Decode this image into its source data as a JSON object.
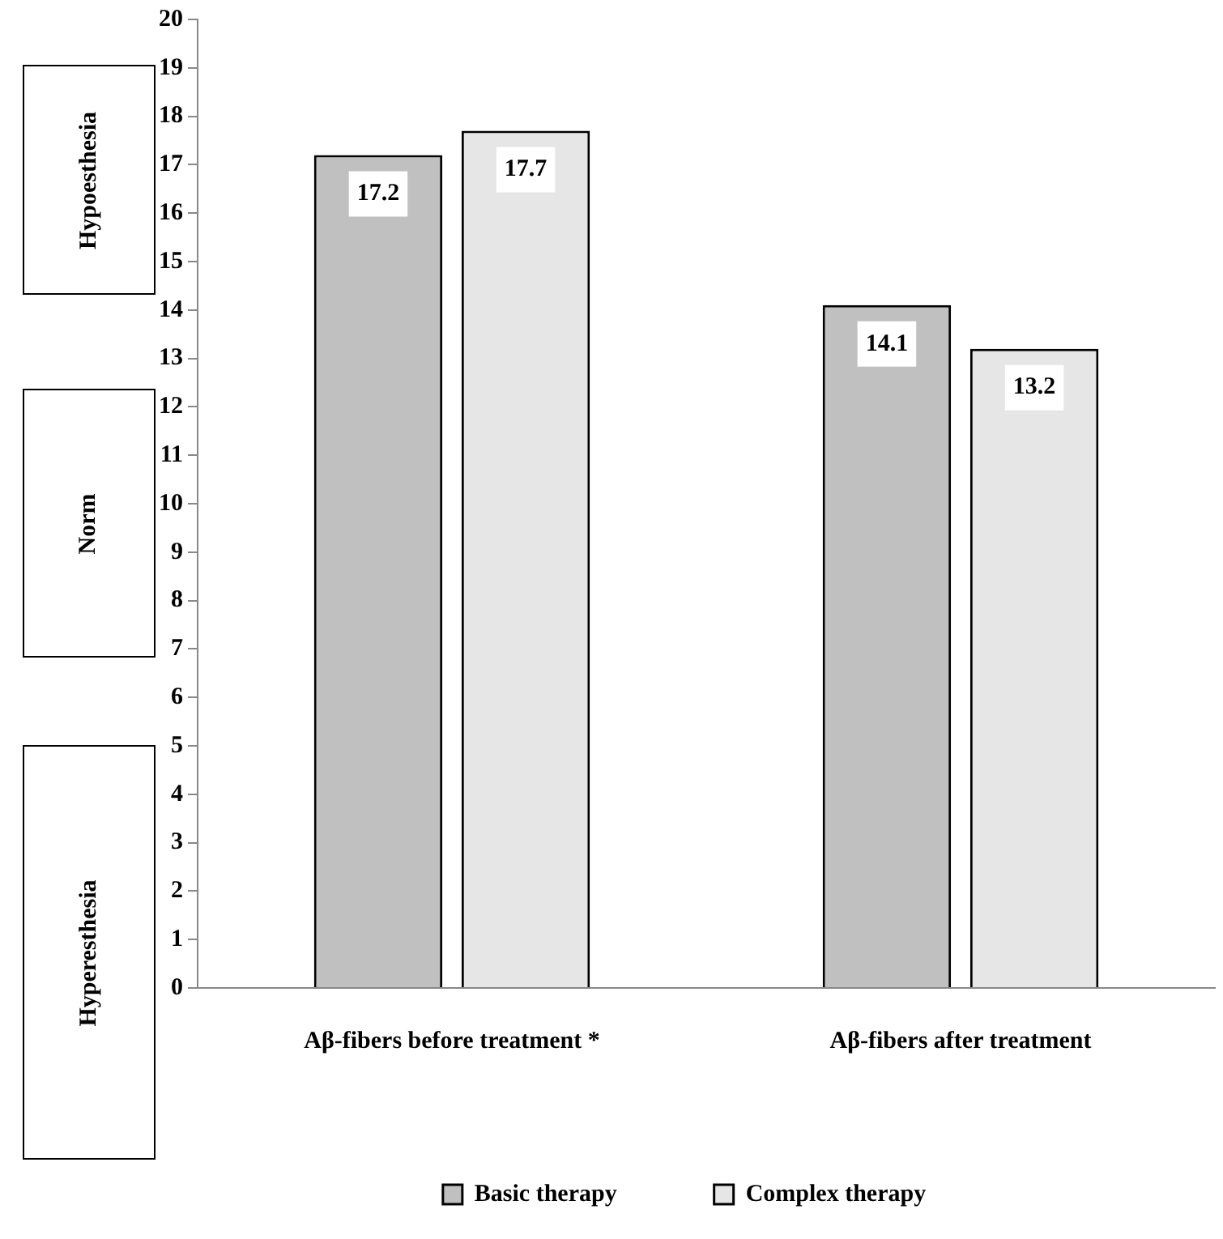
{
  "chart_data": {
    "type": "bar",
    "categories": [
      "Aβ-fibers before treatment *",
      "Aβ-fibers after treatment"
    ],
    "series": [
      {
        "name": "Basic therapy",
        "color": "#c0c0c0",
        "values": [
          17.2,
          14.1
        ]
      },
      {
        "name": "Complex therapy",
        "color": "#e6e6e6",
        "values": [
          17.7,
          13.2
        ]
      }
    ],
    "ylim": [
      0,
      20
    ],
    "yticks": [
      0,
      1,
      2,
      3,
      4,
      5,
      6,
      7,
      8,
      9,
      10,
      11,
      12,
      13,
      14,
      15,
      16,
      17,
      18,
      19,
      20
    ],
    "grid": false,
    "legend": "bottom",
    "data_labels": true,
    "annotations": [
      "Hypoesthesia",
      "Norm",
      "Hyperesthesia"
    ]
  }
}
